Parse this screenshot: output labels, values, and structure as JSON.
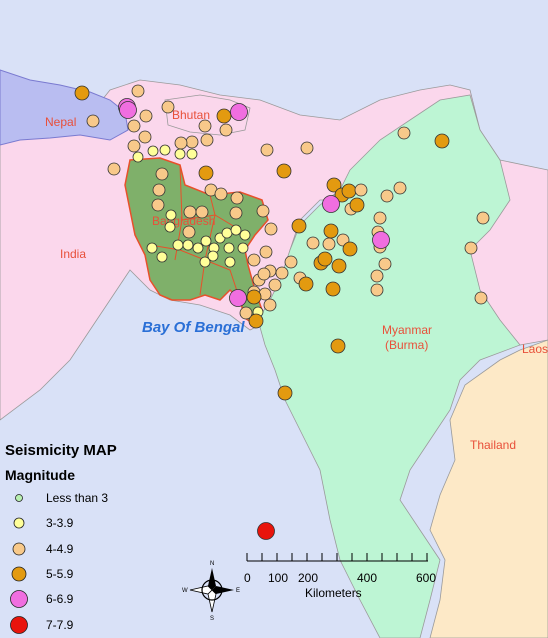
{
  "title": "Seismicity MAP",
  "legend": {
    "title": "Magnitude",
    "items": [
      {
        "label": "Less than 3",
        "color": "#b8f0b0",
        "size": "tiny"
      },
      {
        "label": "3-3.9",
        "color": "#ffff99",
        "size": "small"
      },
      {
        "label": "4-4.9",
        "color": "#f8c98a",
        "size": "medium"
      },
      {
        "label": "5-5.9",
        "color": "#e39a10",
        "size": "large"
      },
      {
        "label": "6-6.9",
        "color": "#f06ee0",
        "size": "xlarge"
      },
      {
        "label": "7-7.9",
        "color": "#e8140c",
        "size": "xlarge"
      }
    ]
  },
  "labels": {
    "nepal": "Nepal",
    "bhutan": "Bhutan",
    "india": "India",
    "bangladesh": "Bangladesh",
    "myanmar_line1": "Myanmar",
    "myanmar_line2": "(Burma)",
    "thailand": "Thailand",
    "laos": "Laos",
    "bay": "Bay Of Bengal"
  },
  "scalebar": {
    "ticks": [
      "0",
      "100",
      "200",
      "400",
      "600"
    ],
    "unit": "Kilometers"
  },
  "compass": {
    "n": "N",
    "s": "S",
    "e": "E",
    "w": "W"
  },
  "colors": {
    "sea": "#d9e1f7",
    "india": "#fbd7ec",
    "nepal": "#b9bdf1",
    "myanmar": "#bdf5d4",
    "thailand": "#fde9c7",
    "bangladesh": "#7fb06a",
    "border": "#e8502a"
  }
}
